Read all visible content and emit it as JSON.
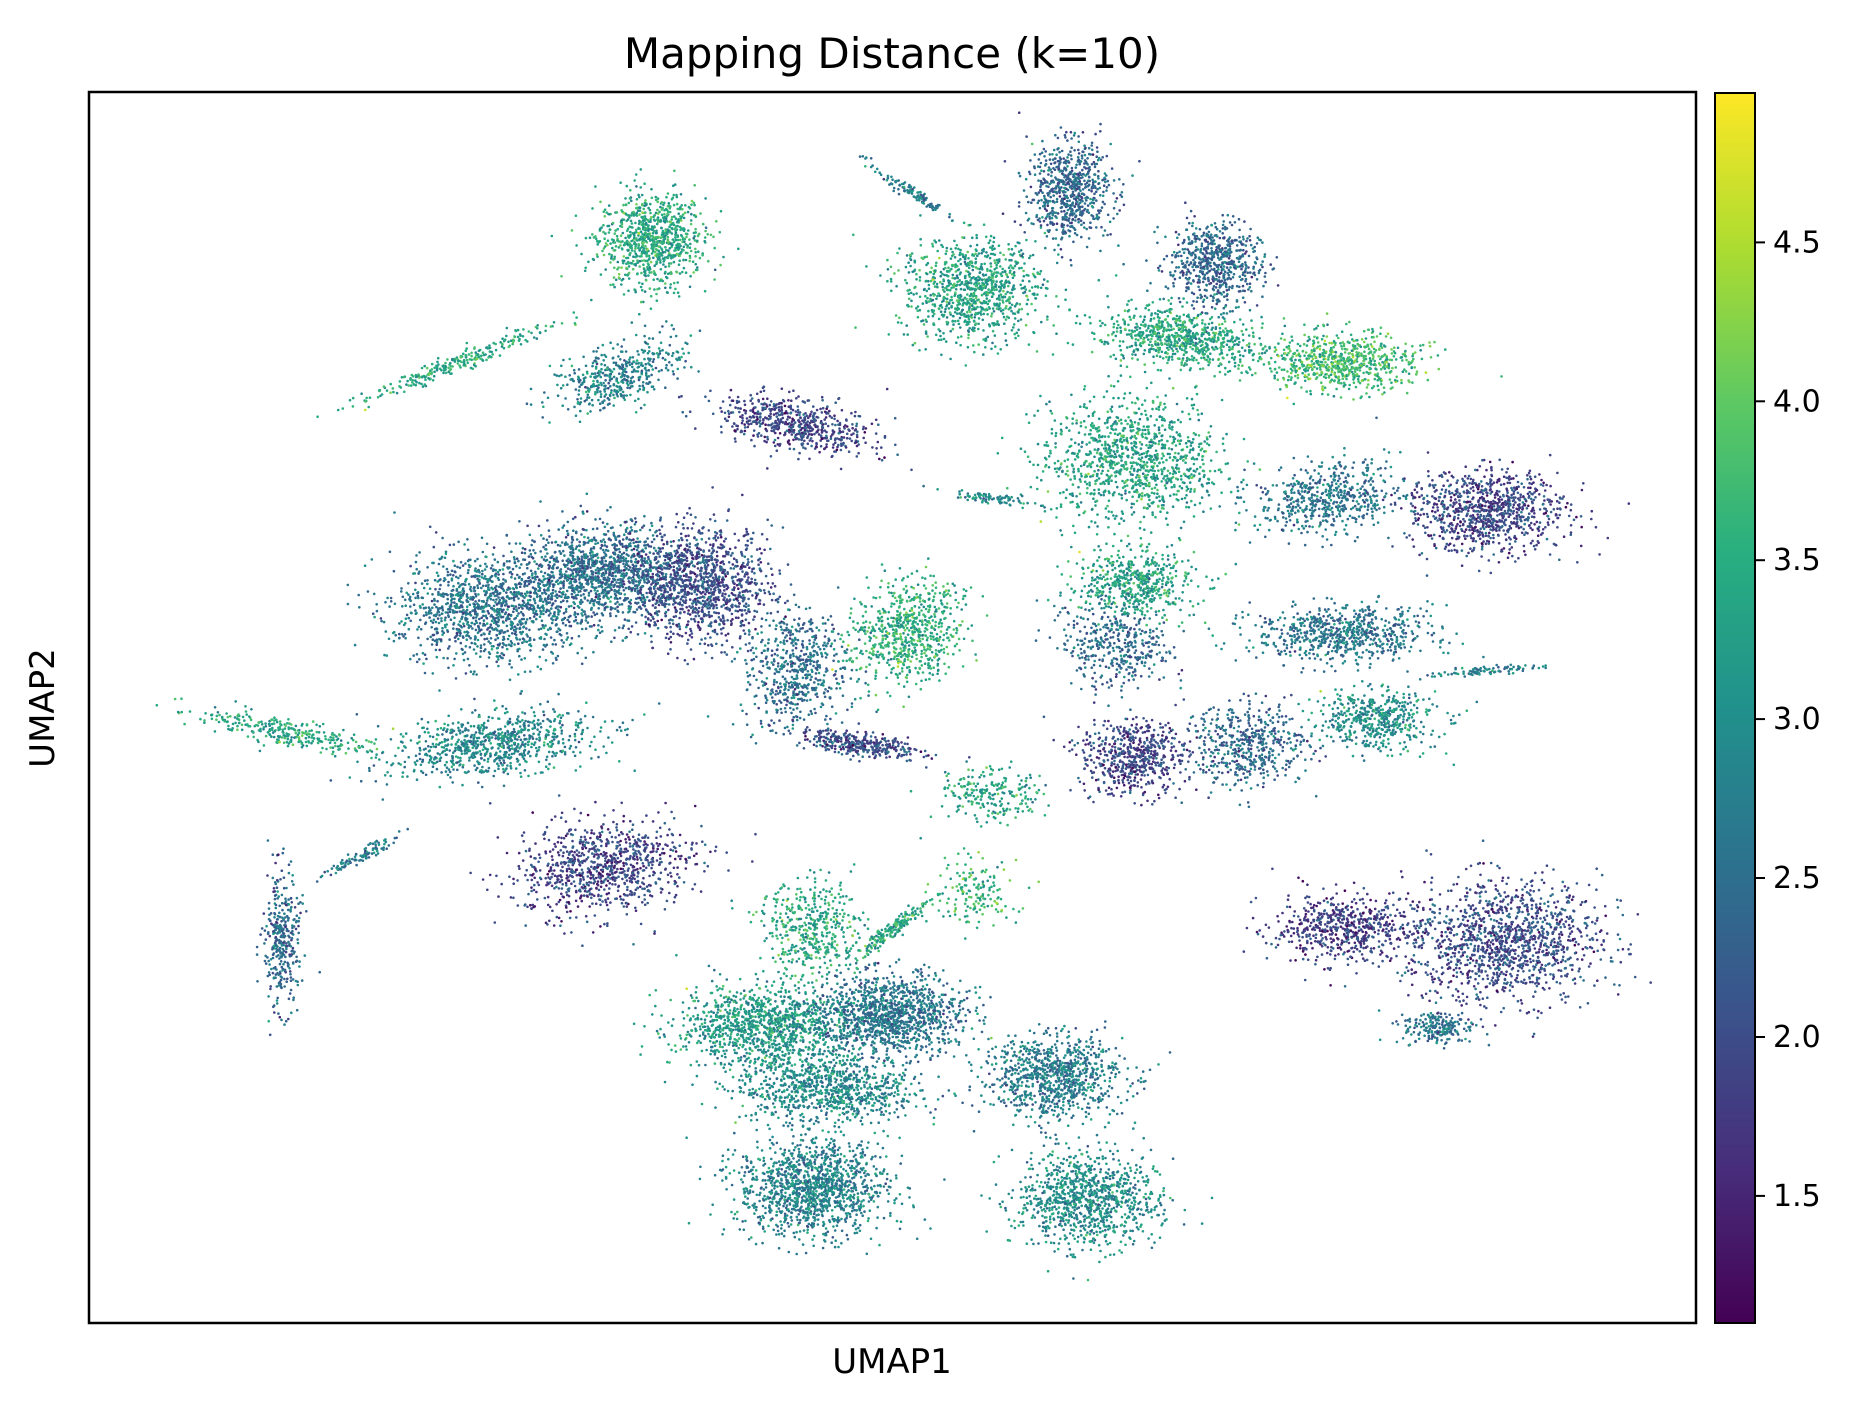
{
  "chart_data": {
    "type": "scatter",
    "title": "Mapping Distance (k=10)",
    "xlabel": "UMAP1",
    "ylabel": "UMAP2",
    "x_ticks": "none",
    "y_ticks": "none",
    "grid": false,
    "legend": "none",
    "colorbar": {
      "colormap": "viridis",
      "range": [
        1.1,
        4.97
      ],
      "ticks": [
        1.5,
        2.0,
        2.5,
        3.0,
        3.5,
        4.0,
        4.5
      ],
      "tick_labels": [
        "1.5",
        "2.0",
        "2.5",
        "3.0",
        "3.5",
        "4.0",
        "4.5"
      ],
      "placement": "right"
    },
    "point_color_hex": "#21918c",
    "clusters": [
      {
        "x": 0.35,
        "y": 0.88,
        "spread_x": 0.03,
        "spread_y": 0.035,
        "angle": 0,
        "value": 3.4,
        "n": 900
      },
      {
        "x": 0.33,
        "y": 0.77,
        "spread_x": 0.02,
        "spread_y": 0.04,
        "angle": -60,
        "value": 2.8,
        "n": 450
      },
      {
        "x": 0.23,
        "y": 0.78,
        "spread_x": 0.06,
        "spread_y": 0.006,
        "angle": 28,
        "value": 3.4,
        "n": 260
      },
      {
        "x": 0.44,
        "y": 0.73,
        "spread_x": 0.045,
        "spread_y": 0.018,
        "angle": -15,
        "value": 1.9,
        "n": 600
      },
      {
        "x": 0.51,
        "y": 0.92,
        "spread_x": 0.03,
        "spread_y": 0.004,
        "angle": -40,
        "value": 2.7,
        "n": 110
      },
      {
        "x": 0.55,
        "y": 0.84,
        "spread_x": 0.04,
        "spread_y": 0.038,
        "angle": 0,
        "value": 3.3,
        "n": 950
      },
      {
        "x": 0.61,
        "y": 0.92,
        "spread_x": 0.024,
        "spread_y": 0.036,
        "angle": 0,
        "value": 2.4,
        "n": 700
      },
      {
        "x": 0.7,
        "y": 0.86,
        "spread_x": 0.026,
        "spread_y": 0.03,
        "angle": 0,
        "value": 2.4,
        "n": 650
      },
      {
        "x": 0.68,
        "y": 0.8,
        "spread_x": 0.045,
        "spread_y": 0.022,
        "angle": -10,
        "value": 3.4,
        "n": 750
      },
      {
        "x": 0.78,
        "y": 0.78,
        "spread_x": 0.042,
        "spread_y": 0.022,
        "angle": 0,
        "value": 3.7,
        "n": 700
      },
      {
        "x": 0.65,
        "y": 0.7,
        "spread_x": 0.05,
        "spread_y": 0.045,
        "angle": 0,
        "value": 3.3,
        "n": 1100
      },
      {
        "x": 0.77,
        "y": 0.67,
        "spread_x": 0.04,
        "spread_y": 0.025,
        "angle": 10,
        "value": 2.6,
        "n": 550
      },
      {
        "x": 0.87,
        "y": 0.66,
        "spread_x": 0.045,
        "spread_y": 0.03,
        "angle": 0,
        "value": 1.9,
        "n": 950
      },
      {
        "x": 0.56,
        "y": 0.67,
        "spread_x": 0.025,
        "spread_y": 0.004,
        "angle": -10,
        "value": 3.0,
        "n": 90
      },
      {
        "x": 0.65,
        "y": 0.6,
        "spread_x": 0.035,
        "spread_y": 0.025,
        "angle": 0,
        "value": 3.3,
        "n": 550
      },
      {
        "x": 0.25,
        "y": 0.58,
        "spread_x": 0.055,
        "spread_y": 0.04,
        "angle": 0,
        "value": 2.6,
        "n": 1300
      },
      {
        "x": 0.32,
        "y": 0.61,
        "spread_x": 0.045,
        "spread_y": 0.035,
        "angle": 0,
        "value": 2.5,
        "n": 1200
      },
      {
        "x": 0.38,
        "y": 0.6,
        "spread_x": 0.04,
        "spread_y": 0.04,
        "angle": 0,
        "value": 2.0,
        "n": 1200
      },
      {
        "x": 0.44,
        "y": 0.53,
        "spread_x": 0.03,
        "spread_y": 0.045,
        "angle": 0,
        "value": 2.5,
        "n": 600
      },
      {
        "x": 0.48,
        "y": 0.47,
        "spread_x": 0.035,
        "spread_y": 0.008,
        "angle": -10,
        "value": 2.0,
        "n": 350
      },
      {
        "x": 0.25,
        "y": 0.47,
        "spread_x": 0.06,
        "spread_y": 0.022,
        "angle": 10,
        "value": 2.9,
        "n": 800
      },
      {
        "x": 0.12,
        "y": 0.48,
        "spread_x": 0.05,
        "spread_y": 0.01,
        "angle": -15,
        "value": 3.4,
        "n": 300
      },
      {
        "x": 0.32,
        "y": 0.37,
        "spread_x": 0.05,
        "spread_y": 0.035,
        "angle": 15,
        "value": 1.9,
        "n": 900
      },
      {
        "x": 0.12,
        "y": 0.31,
        "spread_x": 0.01,
        "spread_y": 0.05,
        "angle": 0,
        "value": 2.4,
        "n": 350
      },
      {
        "x": 0.17,
        "y": 0.38,
        "spread_x": 0.025,
        "spread_y": 0.004,
        "angle": 35,
        "value": 2.7,
        "n": 100
      },
      {
        "x": 0.51,
        "y": 0.56,
        "spread_x": 0.03,
        "spread_y": 0.04,
        "angle": -20,
        "value": 3.5,
        "n": 700
      },
      {
        "x": 0.64,
        "y": 0.55,
        "spread_x": 0.03,
        "spread_y": 0.03,
        "angle": 0,
        "value": 2.4,
        "n": 400
      },
      {
        "x": 0.78,
        "y": 0.56,
        "spread_x": 0.05,
        "spread_y": 0.02,
        "angle": 0,
        "value": 2.6,
        "n": 700
      },
      {
        "x": 0.65,
        "y": 0.46,
        "spread_x": 0.03,
        "spread_y": 0.028,
        "angle": 0,
        "value": 1.9,
        "n": 600
      },
      {
        "x": 0.72,
        "y": 0.47,
        "spread_x": 0.035,
        "spread_y": 0.03,
        "angle": 0,
        "value": 2.4,
        "n": 500
      },
      {
        "x": 0.8,
        "y": 0.49,
        "spread_x": 0.035,
        "spread_y": 0.022,
        "angle": 0,
        "value": 3.0,
        "n": 500
      },
      {
        "x": 0.87,
        "y": 0.53,
        "spread_x": 0.03,
        "spread_y": 0.003,
        "angle": 5,
        "value": 2.8,
        "n": 90
      },
      {
        "x": 0.56,
        "y": 0.43,
        "spread_x": 0.03,
        "spread_y": 0.02,
        "angle": 0,
        "value": 3.4,
        "n": 220
      },
      {
        "x": 0.78,
        "y": 0.32,
        "spread_x": 0.04,
        "spread_y": 0.025,
        "angle": 0,
        "value": 1.8,
        "n": 600
      },
      {
        "x": 0.88,
        "y": 0.31,
        "spread_x": 0.055,
        "spread_y": 0.045,
        "angle": 0,
        "value": 2.0,
        "n": 1300
      },
      {
        "x": 0.84,
        "y": 0.24,
        "spread_x": 0.02,
        "spread_y": 0.012,
        "angle": 0,
        "value": 2.6,
        "n": 200
      },
      {
        "x": 0.45,
        "y": 0.32,
        "spread_x": 0.03,
        "spread_y": 0.035,
        "angle": 0,
        "value": 3.4,
        "n": 450
      },
      {
        "x": 0.5,
        "y": 0.32,
        "spread_x": 0.03,
        "spread_y": 0.005,
        "angle": 45,
        "value": 3.4,
        "n": 180
      },
      {
        "x": 0.55,
        "y": 0.35,
        "spread_x": 0.025,
        "spread_y": 0.025,
        "angle": 0,
        "value": 3.6,
        "n": 160
      },
      {
        "x": 0.42,
        "y": 0.24,
        "spread_x": 0.05,
        "spread_y": 0.03,
        "angle": 0,
        "value": 3.2,
        "n": 1200
      },
      {
        "x": 0.5,
        "y": 0.25,
        "spread_x": 0.04,
        "spread_y": 0.03,
        "angle": 0,
        "value": 2.6,
        "n": 1200
      },
      {
        "x": 0.46,
        "y": 0.19,
        "spread_x": 0.05,
        "spread_y": 0.025,
        "angle": 0,
        "value": 2.9,
        "n": 900
      },
      {
        "x": 0.45,
        "y": 0.11,
        "spread_x": 0.042,
        "spread_y": 0.035,
        "angle": 0,
        "value": 2.8,
        "n": 1300
      },
      {
        "x": 0.6,
        "y": 0.2,
        "spread_x": 0.04,
        "spread_y": 0.03,
        "angle": 0,
        "value": 2.7,
        "n": 900
      },
      {
        "x": 0.62,
        "y": 0.1,
        "spread_x": 0.04,
        "spread_y": 0.035,
        "angle": 0,
        "value": 3.0,
        "n": 1000
      }
    ]
  }
}
